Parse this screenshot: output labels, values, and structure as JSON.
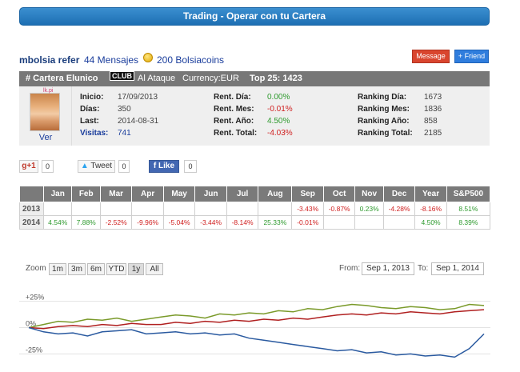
{
  "banner": "Trading - Operar con tu Cartera",
  "user": {
    "name": "mbolsia refer",
    "messages": "44 Mensajes",
    "coins": "200 Bolsiacoins",
    "message_btn": "Message",
    "friend_btn": "+ Friend"
  },
  "cartera": {
    "title": "# Cartera Elunico",
    "club": "CLUB",
    "style": "Al Ataque",
    "currency": "Currency:EUR",
    "top": "Top 25: 1423",
    "avatar_tag": "lk.pi",
    "ver": "Ver"
  },
  "info": {
    "inicio_l": "Inicio:",
    "inicio_v": "17/09/2013",
    "dias_l": "Días:",
    "dias_v": "350",
    "last_l": "Last:",
    "last_v": "2014-08-31",
    "visitas_l": "Visitas:",
    "visitas_v": "741",
    "rdia_l": "Rent. Día:",
    "rdia_v": "0.00%",
    "rmes_l": "Rent. Mes:",
    "rmes_v": "-0.01%",
    "rano_l": "Rent. Año:",
    "rano_v": "4.50%",
    "rtot_l": "Rent. Total:",
    "rtot_v": "-4.03%",
    "kdia_l": "Ranking Día:",
    "kdia_v": "1673",
    "kmes_l": "Ranking Mes:",
    "kmes_v": "1836",
    "kano_l": "Ranking Año:",
    "kano_v": "858",
    "ktot_l": "Ranking Total:",
    "ktot_v": "2185"
  },
  "social": {
    "gplus": "g+1",
    "gplus_count": "0",
    "tweet": "Tweet",
    "tweet_count": "0",
    "like": "Like",
    "like_count": "0"
  },
  "months_table": {
    "headers": [
      "",
      "Jan",
      "Feb",
      "Mar",
      "Apr",
      "May",
      "Jun",
      "Jul",
      "Aug",
      "Sep",
      "Oct",
      "Nov",
      "Dec",
      "Year",
      "S&P500"
    ],
    "rows": [
      [
        "2013",
        "",
        "",
        "",
        "",
        "",
        "",
        "",
        "",
        "-3.43%",
        "-0.87%",
        "0.23%",
        "-4.28%",
        "-8.16%",
        "8.51%"
      ],
      [
        "2014",
        "4.54%",
        "7.88%",
        "-2.52%",
        "-9.96%",
        "-5.04%",
        "-3.44%",
        "-8.14%",
        "25.33%",
        "-0.01%",
        "",
        "",
        "",
        "4.50%",
        "8.39%"
      ]
    ],
    "positive_color": "#2e9a2e",
    "negative_color": "#d02020"
  },
  "zoom": {
    "label": "Zoom",
    "buttons": [
      "1m",
      "3m",
      "6m",
      "YTD",
      "1y",
      "All"
    ],
    "active": "1y",
    "from_label": "From:",
    "from_value": "Sep 1, 2013",
    "to_label": "To:",
    "to_value": "Sep 1, 2014"
  },
  "chart_data": {
    "type": "line",
    "y_tick_labels": [
      "+25%",
      "0%",
      "-25%"
    ],
    "ylim": [
      -30,
      30
    ],
    "series": [
      {
        "color": "#7a9a2a",
        "values": [
          0,
          3,
          6,
          5,
          8,
          7,
          9,
          6,
          8,
          10,
          12,
          11,
          9,
          13,
          12,
          14,
          13,
          16,
          15,
          18,
          17,
          20,
          22,
          21,
          19,
          18,
          20,
          19,
          17,
          18,
          22,
          21
        ]
      },
      {
        "color": "#b02020",
        "values": [
          0,
          -1,
          1,
          2,
          1,
          3,
          2,
          4,
          3,
          3,
          5,
          4,
          6,
          5,
          7,
          6,
          8,
          7,
          9,
          8,
          10,
          12,
          13,
          12,
          14,
          13,
          15,
          14,
          13,
          15,
          16,
          17
        ]
      },
      {
        "color": "#2a5aa0",
        "values": [
          0,
          -4,
          -6,
          -5,
          -8,
          -4,
          -3,
          -2,
          -6,
          -5,
          -4,
          -6,
          -5,
          -7,
          -6,
          -10,
          -12,
          -14,
          -16,
          -18,
          -20,
          -22,
          -21,
          -24,
          -23,
          -26,
          -25,
          -27,
          -26,
          -28,
          -20,
          -6
        ]
      }
    ]
  }
}
